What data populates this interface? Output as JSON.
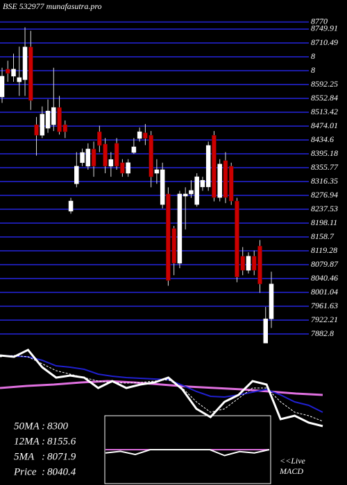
{
  "chart_data": {
    "type": "candlestick",
    "title": "BSE 532977 munafasutra.pro",
    "ylim": [
      7857.3,
      8790.1
    ],
    "yticks": [
      8770,
      8749.91,
      8710.49,
      {
        "value": 8671.08,
        "label": "8"
      },
      {
        "value": 8631.67,
        "label": "8"
      },
      8592.25,
      8552.84,
      8513.42,
      8474.01,
      8434.6,
      8395.18,
      8355.77,
      8316.35,
      8276.94,
      8237.53,
      8198.11,
      8158.7,
      8119.28,
      8079.87,
      8040.46,
      8001.04,
      7961.63,
      7922.21,
      7882.8
    ],
    "grid": true,
    "up_color": "#ffffff",
    "down_color": "#cc0000",
    "grid_color": "#1c1ca8",
    "open": [
      8557,
      8636,
      8616,
      8600,
      8606,
      8699,
      8478,
      8448,
      8468,
      8478,
      8527,
      8478,
      8232,
      8310,
      8370,
      8360,
      8409,
      8458,
      8423,
      8360,
      8425,
      8370,
      8340,
      8399,
      8439,
      8455,
      8448,
      8340,
      8251,
      8281,
      8183,
      8084,
      8275,
      8281,
      8251,
      8301,
      8301,
      8448,
      8271,
      8376,
      8360,
      8261,
      8104,
      8064,
      8104,
      8133,
      7857,
      7926
    ],
    "high": [
      8640,
      8660,
      8680,
      8700,
      8755,
      8745,
      8500,
      8530,
      8550,
      8640,
      8560,
      8490,
      8270,
      8400,
      8410,
      8425,
      8430,
      8475,
      8440,
      8400,
      8440,
      8380,
      8380,
      8440,
      8470,
      8480,
      8460,
      8380,
      8370,
      8300,
      8190,
      8290,
      8300,
      8320,
      8340,
      8330,
      8430,
      8460,
      8380,
      8400,
      8370,
      8270,
      8130,
      8115,
      8120,
      8150,
      7960,
      8060
    ],
    "low": [
      8540,
      8600,
      8600,
      8560,
      8560,
      8520,
      8390,
      8440,
      8455,
      8460,
      8450,
      8440,
      8225,
      8300,
      8360,
      8350,
      8330,
      8400,
      8340,
      8330,
      8350,
      8330,
      8330,
      8395,
      8430,
      8420,
      8300,
      8310,
      8240,
      8020,
      8050,
      8070,
      8180,
      8270,
      8245,
      8290,
      8290,
      8260,
      8260,
      8255,
      8250,
      8030,
      8050,
      8055,
      8050,
      8000,
      7857,
      7900
    ],
    "close": [
      8616,
      8624,
      8636,
      8612,
      8699,
      8547,
      8448,
      8508,
      8517,
      8527,
      8458,
      8458,
      8261,
      8360,
      8399,
      8409,
      8360,
      8419,
      8360,
      8379,
      8360,
      8340,
      8370,
      8415,
      8458,
      8439,
      8330,
      8350,
      8350,
      8035,
      8084,
      8281,
      8281,
      8291,
      8330,
      8320,
      8419,
      8271,
      8366,
      8271,
      8261,
      8045,
      8064,
      8104,
      8064,
      8025,
      7926,
      8025
    ],
    "ma_panel": {
      "ylim": [
        7894,
        8822
      ],
      "series": [
        {
          "color": "#e070e0",
          "width": 3,
          "dash": false,
          "values": [
            8358,
            8375.4,
            8387,
            8404.4,
            8416,
            8404.4,
            8387,
            8369.6,
            8358,
            8346.4,
            8329,
            8311.6,
            8300
          ]
        },
        {
          "color": "#2020d0",
          "width": 2,
          "dash": false,
          "values": [
            8630.6,
            8624.8,
            8619,
            8590,
            8543.6,
            8532,
            8514.6,
            8474,
            8456.6,
            8445,
            8439.2,
            8433.4,
            8427.6,
            8381.2,
            8329,
            8288.4,
            8282.6,
            8300,
            8323.2,
            8346.4,
            8300,
            8242,
            8213,
            8155
          ]
        },
        {
          "color": "#ffffff",
          "width": 1,
          "dash": true,
          "values": [
            8619,
            8630.6,
            8619,
            8561,
            8503,
            8474,
            8445,
            8416,
            8404.4,
            8398.6,
            8404.4,
            8416,
            8427.6,
            8358,
            8242,
            8155,
            8184,
            8271,
            8358,
            8358,
            8242,
            8155,
            8126,
            8079.6
          ]
        },
        {
          "color": "#ffffff",
          "width": 3,
          "dash": false,
          "values": [
            8630.6,
            8619,
            8677,
            8532,
            8445,
            8462.4,
            8445,
            8358,
            8416,
            8358,
            8387,
            8404.4,
            8445,
            8346.4,
            8184,
            8114.4,
            8242,
            8300,
            8416,
            8387,
            8097,
            8126,
            8068,
            8039
          ]
        }
      ]
    },
    "macd_panel": {
      "ylim": [
        -10,
        10
      ],
      "series": [
        {
          "color": "#e070e0",
          "width": 2,
          "values": [
            0,
            0,
            0,
            0,
            0,
            0,
            0,
            0,
            0,
            0,
            0,
            0
          ]
        },
        {
          "color": "#ffffff",
          "width": 2,
          "values": [
            -1,
            -0.5,
            -1.5,
            0,
            0,
            0,
            0,
            0,
            -1.8,
            -0.6,
            -1,
            0
          ]
        }
      ]
    },
    "stats": [
      {
        "label": "50MA",
        "value": 8300
      },
      {
        "label": "12MA",
        "value": 8155.6
      },
      {
        "label": "5MA",
        "value": 8071.9
      },
      {
        "label": "Price",
        "value": 8040.4
      }
    ],
    "live_label": "<<Live",
    "macd_label": "MACD"
  }
}
